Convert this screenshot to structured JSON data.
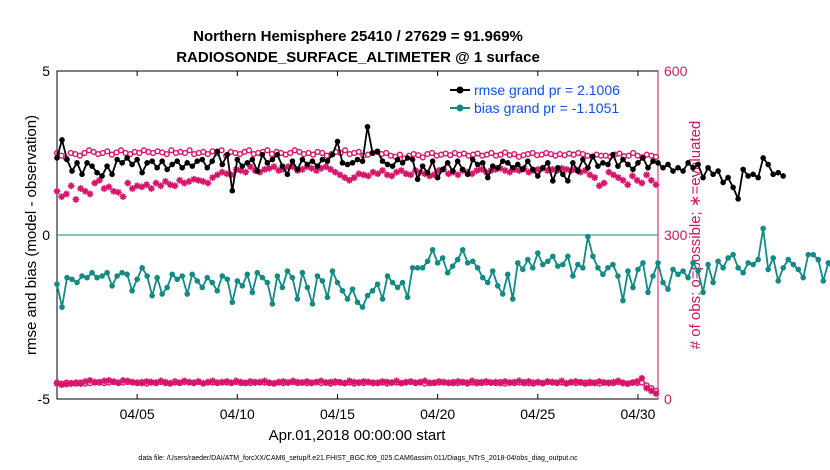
{
  "chart_data": {
    "type": "line",
    "title_line1": "Northern Hemisphere 25410 / 27629 = 91.969%",
    "title_line2": "RADIOSONDE_SURFACE_ALTIMETER @ 1 surface",
    "ylabel_left": "rmse and bias (model - observation)",
    "ylabel_right": "# of obs: o=possible; ∗=evaluated",
    "xlabel": "Apr.01,2018 00:00:00 start",
    "footnote": "data file: /Users/raeder/DAI/ATM_forcXX/CAM6_setup/f.e21.FHIST_BGC.f09_025.CAM6assim.011/Diags_NTrS_2018-04/obs_diag_output.nc",
    "ylim_left": [
      -5,
      5
    ],
    "ylim_right": [
      0,
      600
    ],
    "xlim": [
      1,
      31
    ],
    "y_ticks_left": [
      "-5",
      "0",
      "5"
    ],
    "y_ticks_right": [
      "0",
      "300",
      "600"
    ],
    "x_ticks": [
      {
        "day": 5,
        "label": "04/05"
      },
      {
        "day": 10,
        "label": "04/10"
      },
      {
        "day": 15,
        "label": "04/15"
      },
      {
        "day": 20,
        "label": "04/20"
      },
      {
        "day": 25,
        "label": "04/25"
      },
      {
        "day": 30,
        "label": "04/30"
      }
    ],
    "legend": [
      {
        "label": "rmse grand pr = 2.1006",
        "color": "#000000"
      },
      {
        "label": "bias grand pr = -1.1051",
        "color": "#138a85"
      }
    ],
    "colors": {
      "rmse": "#000000",
      "bias": "#138a85",
      "obs": "#d6156c",
      "zero_line": "#138a85"
    },
    "x_start": 1.0,
    "x_step": 0.25,
    "series": [
      {
        "name": "rmse",
        "values": [
          2.35,
          2.9,
          2.3,
          1.95,
          2.2,
          1.85,
          2.2,
          2.1,
          1.9,
          1.8,
          2.1,
          1.85,
          2.3,
          2.2,
          2.35,
          2.15,
          2.3,
          1.9,
          2.2,
          2.25,
          2.05,
          2.25,
          2.0,
          2.15,
          2.25,
          2.05,
          2.2,
          2.1,
          2.25,
          2.3,
          2.05,
          2.25,
          2.55,
          2.15,
          2.45,
          1.35,
          2.3,
          2.1,
          2.2,
          2.3,
          1.95,
          2.45,
          2.2,
          2.3,
          2.45,
          2.1,
          1.85,
          2.25,
          2.0,
          2.3,
          2.15,
          2.25,
          2.1,
          2.3,
          2.25,
          2.45,
          2.85,
          2.2,
          2.15,
          2.2,
          2.3,
          2.25,
          3.3,
          2.5,
          2.55,
          2.25,
          2.15,
          2.1,
          2.3,
          2.2,
          2.35,
          2.3,
          1.7,
          2.1,
          1.9,
          2.25,
          1.75,
          2.0,
          2.2,
          1.95,
          2.25,
          2.0,
          1.85,
          2.3,
          2.15,
          2.2,
          1.75,
          2.1,
          2.05,
          2.25,
          2.2,
          2.05,
          2.15,
          2.0,
          2.25,
          2.0,
          1.8,
          2.05,
          2.2,
          1.65,
          2.05,
          1.85,
          1.65,
          2.2,
          1.95,
          2.3,
          2.05,
          2.4,
          2.1,
          2.2,
          2.15,
          2.45,
          2.1,
          2.3,
          2.15,
          2.0,
          2.2,
          2.35,
          2.05,
          2.25,
          2.2,
          2.05,
          2.15,
          1.95,
          2.05,
          1.95,
          2.2,
          2.05,
          2.15,
          1.75,
          2.05,
          1.85,
          1.95,
          1.6,
          1.75,
          1.45,
          1.1,
          2.0,
          1.8,
          1.85,
          1.75,
          2.35,
          2.15,
          1.85,
          1.9,
          1.8
        ]
      },
      {
        "name": "bias",
        "values": [
          -1.5,
          -2.2,
          -1.3,
          -1.35,
          -1.45,
          -1.25,
          -1.3,
          -1.15,
          -1.3,
          -1.25,
          -1.15,
          -1.55,
          -1.25,
          -1.15,
          -1.2,
          -1.7,
          -1.35,
          -1.0,
          -1.25,
          -1.85,
          -1.3,
          -1.8,
          -1.6,
          -1.2,
          -1.35,
          -1.25,
          -1.8,
          -1.2,
          -1.4,
          -1.6,
          -1.3,
          -1.45,
          -1.7,
          -1.25,
          -1.35,
          -2.05,
          -1.4,
          -1.55,
          -1.2,
          -1.75,
          -1.15,
          -1.3,
          -1.45,
          -2.1,
          -1.25,
          -1.6,
          -1.1,
          -1.3,
          -1.95,
          -1.15,
          -1.6,
          -2.1,
          -1.25,
          -1.4,
          -1.9,
          -1.1,
          -1.45,
          -1.7,
          -1.95,
          -1.65,
          -2.05,
          -2.2,
          -1.85,
          -1.7,
          -1.5,
          -1.95,
          -1.25,
          -1.45,
          -1.6,
          -1.45,
          -1.9,
          -1.0,
          -1.0,
          -1.0,
          -0.8,
          -0.45,
          -0.85,
          -0.7,
          -1.15,
          -0.95,
          -0.75,
          -0.45,
          -0.85,
          -0.8,
          -1.0,
          -1.3,
          -1.45,
          -1.1,
          -1.55,
          -1.8,
          -1.2,
          -1.95,
          -0.85,
          -1.05,
          -0.75,
          -1.0,
          -0.55,
          -0.9,
          -0.8,
          -0.65,
          -0.95,
          -0.9,
          -0.65,
          -1.25,
          -0.9,
          -1.0,
          -0.05,
          -0.65,
          -1.0,
          -1.2,
          -1.0,
          -0.9,
          -1.25,
          -2.0,
          -1.1,
          -1.6,
          -1.05,
          -0.85,
          -1.75,
          -1.25,
          -0.85,
          -1.45,
          -1.65,
          -1.05,
          -1.2,
          -1.1,
          -1.3,
          -0.85,
          -1.1,
          -1.75,
          -0.9,
          -1.45,
          -0.8,
          -1.0,
          -0.7,
          -0.6,
          -1.0,
          -1.15,
          -0.85,
          -0.9,
          -0.75,
          0.2,
          -1.05,
          -0.7,
          -1.4,
          -1.0,
          -0.75,
          -0.9,
          -1.05,
          -1.3,
          -0.6,
          -0.6,
          -0.75,
          -1.4,
          -0.85,
          -1.1
        ]
      },
      {
        "name": "possible",
        "marker": "o",
        "values": [
          450,
          445,
          440,
          450,
          448,
          445,
          450,
          455,
          452,
          448,
          450,
          453,
          447,
          451,
          455,
          450,
          448,
          452,
          450,
          455,
          452,
          450,
          453,
          451,
          448,
          455,
          450,
          452,
          450,
          455,
          448,
          450,
          452,
          448,
          453,
          450,
          455,
          445,
          452,
          450,
          448,
          452,
          455,
          448,
          450,
          452,
          455,
          448,
          452,
          450,
          447,
          450,
          455,
          452,
          448,
          450,
          447,
          452,
          450,
          445,
          448,
          452,
          450,
          455,
          448,
          450,
          452,
          445,
          447,
          450,
          452,
          448,
          450,
          445,
          443,
          447,
          440,
          445,
          448,
          446,
          442,
          448,
          450,
          445,
          447,
          449,
          446,
          450,
          447,
          449,
          445,
          447,
          449,
          445,
          447,
          450,
          445,
          447,
          451,
          446,
          448,
          443,
          446,
          448,
          450,
          446,
          447,
          450,
          448,
          445,
          448,
          446,
          449,
          447,
          450,
          448,
          445,
          443,
          447,
          445,
          445,
          443,
          447,
          449,
          444,
          445,
          450,
          445,
          442,
          447,
          445,
          443
        ]
      },
      {
        "name": "evaluated",
        "marker": "*",
        "values": [
          380,
          370,
          375,
          390,
          365,
          385,
          380,
          375,
          395,
          400,
          385,
          388,
          380,
          378,
          370,
          395,
          385,
          390,
          388,
          392,
          385,
          395,
          390,
          398,
          392,
          390,
          400,
          395,
          398,
          402,
          400,
          398,
          395,
          405,
          410,
          415,
          412,
          410,
          420,
          418,
          415,
          425,
          418,
          415,
          420,
          422,
          425,
          418,
          420,
          425,
          425,
          418,
          420,
          425,
          422,
          418,
          422,
          425,
          420,
          415,
          410,
          405,
          400,
          405,
          412,
          410,
          408,
          415,
          412,
          418,
          410,
          408,
          415,
          418,
          412,
          410,
          418,
          415,
          412,
          408,
          410,
          418,
          420,
          412,
          415,
          410,
          418,
          415,
          412,
          418,
          420,
          415,
          418,
          420,
          422,
          418,
          415,
          420,
          418,
          422,
          415,
          418,
          420,
          422,
          418,
          420,
          418,
          422,
          420,
          418,
          420,
          415,
          418,
          410,
          405,
          390,
          395,
          415,
          410,
          405,
          400,
          392,
          408,
          400,
          395,
          410,
          400,
          392
        ]
      },
      {
        "name": "obs_bottom_possible",
        "marker": "o",
        "values": [
          30,
          28,
          30,
          29,
          28,
          30,
          28,
          29,
          30,
          31,
          29,
          30,
          31,
          29,
          30,
          31,
          30,
          29,
          31,
          28,
          30,
          29,
          31,
          29,
          28,
          30,
          29,
          31,
          30,
          29,
          31,
          28,
          30,
          30,
          29,
          30,
          30,
          29,
          31,
          29,
          30,
          29,
          31,
          30,
          30,
          29,
          28,
          30,
          29,
          30,
          31,
          29,
          30,
          29,
          30,
          31,
          29,
          30,
          28,
          30,
          31,
          29,
          30,
          28,
          30,
          29,
          31,
          30,
          29,
          30,
          28,
          30,
          30,
          29,
          30,
          31,
          29,
          30,
          28,
          30,
          29,
          30,
          30,
          29,
          31,
          29,
          30,
          28,
          30,
          31,
          29,
          30,
          30,
          29,
          31,
          28,
          30,
          29,
          30,
          31,
          29,
          28,
          30,
          29,
          31,
          30,
          29,
          30,
          28,
          30,
          29,
          31,
          30,
          29,
          30,
          28,
          30,
          30,
          29,
          31,
          30,
          28,
          30,
          29,
          30,
          25,
          20,
          15
        ]
      },
      {
        "name": "obs_bottom_evaluated",
        "marker": "*",
        "values": [
          28,
          26,
          27,
          28,
          30,
          28,
          32,
          34,
          31,
          30,
          33,
          34,
          32,
          30,
          34,
          33,
          31,
          30,
          29,
          32,
          31,
          30,
          33,
          31,
          29,
          32,
          30,
          33,
          31,
          30,
          32,
          29,
          31,
          33,
          30,
          31,
          32,
          30,
          33,
          31,
          29,
          32,
          30,
          31,
          33,
          30,
          29,
          31,
          32,
          30,
          33,
          31,
          30,
          32,
          29,
          31,
          33,
          30,
          31,
          32,
          30,
          29,
          33,
          31,
          30,
          32,
          31,
          29,
          30,
          32,
          31,
          30,
          33,
          29,
          31,
          32,
          30,
          31,
          33,
          29,
          30,
          32,
          31,
          30,
          29,
          32,
          31,
          30,
          33,
          29,
          31,
          32,
          30,
          31,
          29,
          32,
          30,
          31,
          33,
          29,
          32,
          30,
          31,
          29,
          32,
          31,
          30,
          33,
          29,
          31,
          32,
          30,
          28,
          31,
          29,
          32,
          30,
          29,
          31,
          33,
          29,
          28,
          30,
          32,
          38,
          20,
          15,
          10
        ]
      }
    ]
  }
}
